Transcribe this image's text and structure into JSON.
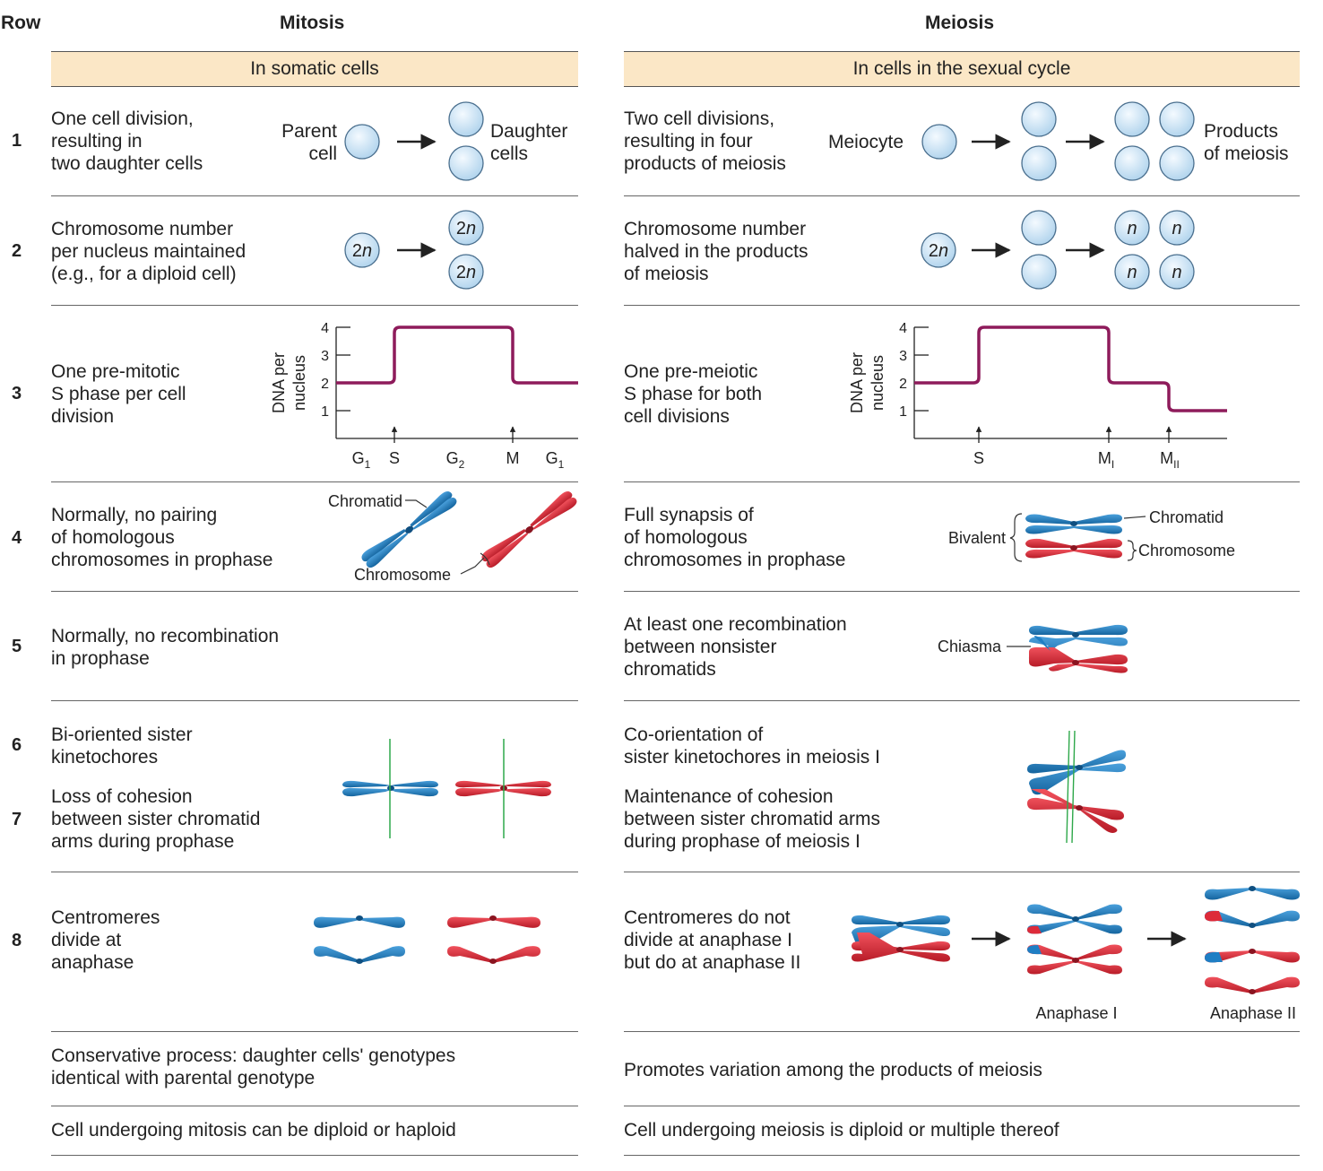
{
  "header": {
    "row": "Row",
    "mitosis": "Mitosis",
    "meiosis": "Meiosis"
  },
  "bands": {
    "mitosis": "In somatic cells",
    "meiosis": "In cells in the sexual cycle"
  },
  "rows": {
    "r1": {
      "num": "1",
      "mit": [
        "One cell division,",
        "resulting in",
        "two daughter cells"
      ],
      "mei": [
        "Two cell divisions,",
        "resulting in four",
        "products of meiosis"
      ]
    },
    "r2": {
      "num": "2",
      "mit": [
        "Chromosome number",
        "per nucleus maintained",
        "(e.g., for a diploid cell)"
      ],
      "mei": [
        "Chromosome number",
        "halved in the products",
        "of meiosis"
      ]
    },
    "r3": {
      "num": "3",
      "mit": [
        "One pre-mitotic",
        "S phase per cell",
        "division"
      ],
      "mei": [
        "One pre-meiotic",
        "S phase for both",
        "cell divisions"
      ]
    },
    "r4": {
      "num": "4",
      "mit": [
        "Normally, no pairing",
        "of homologous",
        "chromosomes in prophase"
      ],
      "mei": [
        "Full synapsis of",
        "of homologous",
        "chromosomes in prophase"
      ]
    },
    "r5": {
      "num": "5",
      "mit": [
        "Normally, no recombination",
        "in prophase"
      ],
      "mei": [
        "At least one recombination",
        "between nonsister",
        "chromatids"
      ]
    },
    "r6": {
      "num": "6",
      "mit": [
        "Bi-oriented sister",
        "kinetochores"
      ],
      "mei": [
        "Co-orientation of",
        "sister kinetochores in meiosis I"
      ]
    },
    "r7": {
      "num": "7",
      "mit": [
        "Loss of cohesion",
        "between sister chromatid",
        "arms during prophase"
      ],
      "mei": [
        "Maintenance of cohesion",
        "between sister chromatid arms",
        "during prophase of meiosis I"
      ]
    },
    "r8": {
      "num": "8",
      "mit": [
        "Centromeres",
        "divide at",
        "anaphase"
      ],
      "mei": [
        "Centromeres do not",
        "divide at anaphase I",
        "but do at anaphase II"
      ]
    },
    "r9": {
      "mit": [
        "Conservative process: daughter cells' genotypes",
        "identical with parental genotype"
      ],
      "mei": [
        "Promotes variation among the products of meiosis"
      ]
    },
    "r10": {
      "mit": [
        "Cell undergoing mitosis can be diploid or haploid"
      ],
      "mei": [
        "Cell undergoing meiosis is diploid or multiple thereof"
      ]
    }
  },
  "labels": {
    "parent1": "Parent",
    "parent2": "cell",
    "daughter1": "Daughter",
    "daughter2": "cells",
    "meiocyte": "Meiocyte",
    "products1": "Products",
    "products2": "of meiosis",
    "two_n": "2",
    "n_italic": "n",
    "chromatid": "Chromatid",
    "chromosome": "Chromosome",
    "bivalent": "Bivalent",
    "chiasma": "Chiasma",
    "anaphase1": "Anaphase I",
    "anaphase2": "Anaphase II"
  },
  "graph": {
    "ylabel1": "DNA per",
    "ylabel2": "nucleus",
    "yticks": [
      "1",
      "2",
      "3",
      "4"
    ],
    "mit_xlabels": [
      "G",
      "S",
      "G",
      "M",
      "G"
    ],
    "mit_subs": [
      "1",
      "",
      "2",
      "",
      "1"
    ],
    "mei_xlabels": [
      "S",
      "M",
      "M"
    ],
    "mei_subs": [
      "",
      "I",
      "II"
    ]
  },
  "colors": {
    "band": "#fbe7c6",
    "cell_fill": "#cfe6f6",
    "cell_stroke": "#4a6f8e",
    "curve": "#8e1b5b",
    "blue": "#1f7ec4",
    "red": "#dd2b3a",
    "spindle": "#2ea84a"
  }
}
